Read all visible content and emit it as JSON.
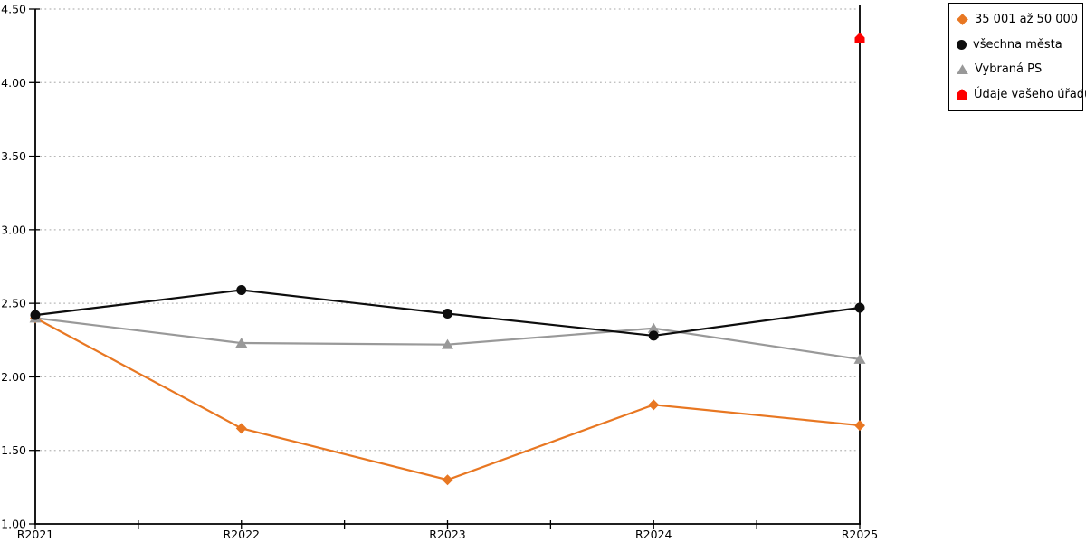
{
  "chart_data": {
    "type": "line",
    "title": "",
    "categories": [
      "R2021",
      "R2022",
      "R2023",
      "R2024",
      "R2025"
    ],
    "series": [
      {
        "name": "35 001 až 50 000",
        "marker": "diamond",
        "color": "#e87722",
        "z": 1,
        "values": [
          2.4,
          1.65,
          1.3,
          1.81,
          1.67
        ]
      },
      {
        "name": "všechna města",
        "marker": "circle",
        "color": "#0d0d0d",
        "z": 3,
        "values": [
          2.42,
          2.59,
          2.43,
          2.28,
          2.47
        ]
      },
      {
        "name": "Vybraná PS",
        "marker": "triangle",
        "color": "#999999",
        "z": 2,
        "values": [
          2.4,
          2.23,
          2.22,
          2.33,
          2.12
        ]
      },
      {
        "name": "Údaje vašeho úřadu",
        "marker": "pentagon",
        "color": "#fe0000",
        "z": 4,
        "line": false,
        "values": [
          null,
          null,
          null,
          null,
          4.3
        ]
      }
    ],
    "ylim": [
      1.0,
      4.5
    ],
    "ytick_step": 0.5,
    "ytick_labels": [
      "1.00",
      "1.50",
      "2.00",
      "2.50",
      "3.00",
      "3.50",
      "4.00",
      "4.50"
    ],
    "xlabel": "",
    "ylabel": "",
    "grid": "horizontal-dotted",
    "gridline_color": "#b8b8b8",
    "axis_color": "#000000",
    "legend_position": "top-right"
  }
}
